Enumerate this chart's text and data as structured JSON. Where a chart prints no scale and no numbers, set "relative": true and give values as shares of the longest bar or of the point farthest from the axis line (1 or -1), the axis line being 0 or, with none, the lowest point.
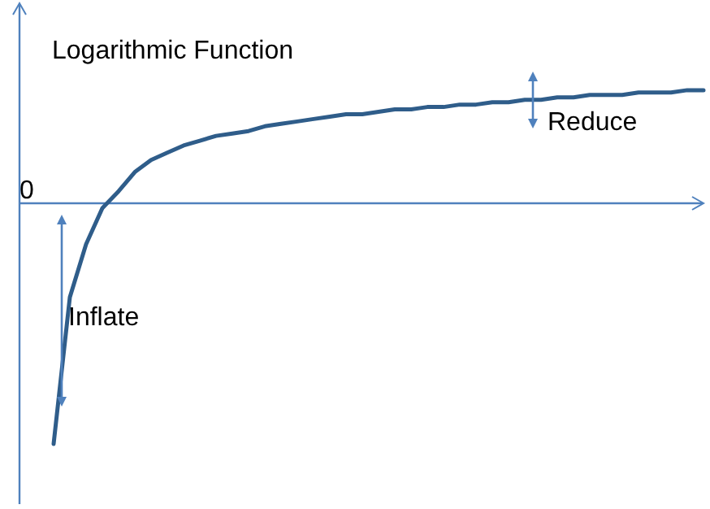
{
  "chart_data": {
    "type": "line",
    "title": "Logarithmic Function",
    "relative": true,
    "categories": [
      null,
      null,
      null,
      null,
      null,
      null,
      null,
      null,
      null,
      null,
      null,
      null,
      null,
      null,
      null,
      null,
      null,
      null,
      null,
      null,
      null,
      null,
      null,
      null,
      null,
      null,
      null,
      null,
      null,
      null,
      null,
      null,
      null,
      null,
      null,
      null,
      null,
      null,
      null,
      null,
      null
    ],
    "series": [
      {
        "color": "#2f5d8a",
        "values": [
          -1,
          -0.39,
          -0.17,
          -0.02,
          0.05,
          0.13,
          0.18,
          0.21,
          0.24,
          0.26,
          0.28,
          0.29,
          0.3,
          0.32,
          0.33,
          0.34,
          0.35,
          0.36,
          0.37,
          0.37,
          0.38,
          0.39,
          0.39,
          0.4,
          0.4,
          0.41,
          0.41,
          0.42,
          0.42,
          0.43,
          0.43,
          0.44,
          0.44,
          0.45,
          0.45,
          0.45,
          0.46,
          0.46,
          0.46,
          0.47,
          0.47
        ]
      }
    ],
    "annotations": [
      "Reduce",
      "Inflate"
    ],
    "ref_lines": [
      {
        "axis": "y",
        "value": 0,
        "label": "0",
        "color": "#4f81bd"
      }
    ],
    "marker": "none",
    "line_style": "solid"
  }
}
